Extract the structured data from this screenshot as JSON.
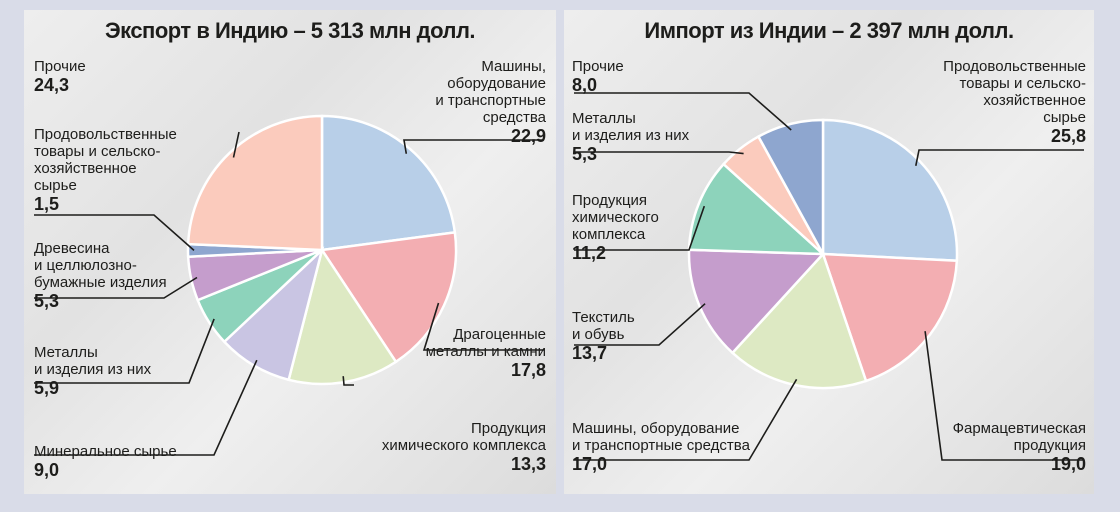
{
  "colors": {
    "background": "#d9dce8",
    "machinery": "#b8cfe8",
    "precious_metals": "#f3aeb2",
    "chemical": "#dde9c3",
    "minerals": "#c9c5e3",
    "metals": "#8dd3bb",
    "wood": "#c59dcc",
    "food": "#8ea6cf",
    "other": "#fbcbbd",
    "pharma": "#f3aeb2",
    "textile": "#c59dcc",
    "other_import": "#8ea6cf"
  },
  "chart_data": [
    {
      "type": "pie",
      "title": "Экспорт в Индию – 5 313 млн долл.",
      "slices": [
        {
          "label": "Машины,\nоборудование\nи транспортные\nсредства",
          "value": 22.9,
          "value_text": "22,9",
          "color": "#b8cfe8"
        },
        {
          "label": "Драгоценные\nметаллы и камни",
          "value": 17.8,
          "value_text": "17,8",
          "color": "#f3aeb2"
        },
        {
          "label": "Продукция\nхимического комплекса",
          "value": 13.3,
          "value_text": "13,3",
          "color": "#dde9c3"
        },
        {
          "label": "Минеральное сырье",
          "value": 9.0,
          "value_text": "9,0",
          "color": "#c9c5e3"
        },
        {
          "label": "Металлы\nи изделия из них",
          "value": 5.9,
          "value_text": "5,9",
          "color": "#8dd3bb"
        },
        {
          "label": "Древесина\nи целлюлозно-\nбумажные изделия",
          "value": 5.3,
          "value_text": "5,3",
          "color": "#c59dcc"
        },
        {
          "label": "Продовольственные\nтовары и сельско-\nхозяйственное\nсырье",
          "value": 1.5,
          "value_text": "1,5",
          "color": "#8ea6cf"
        },
        {
          "label": "Прочие",
          "value": 24.3,
          "value_text": "24,3",
          "color": "#fbcbbd"
        }
      ]
    },
    {
      "type": "pie",
      "title": "Импорт из Индии – 2 397 млн долл.",
      "slices": [
        {
          "label": "Продовольственные\nтовары и сельско-\nхозяйственное\nсырье",
          "value": 25.8,
          "value_text": "25,8",
          "color": "#b8cfe8"
        },
        {
          "label": "Фармацевтическая\nпродукция",
          "value": 19.0,
          "value_text": "19,0",
          "color": "#f3aeb2"
        },
        {
          "label": "Машины, оборудование\nи транспортные средства",
          "value": 17.0,
          "value_text": "17,0",
          "color": "#dde9c3"
        },
        {
          "label": "Текстиль\nи обувь",
          "value": 13.7,
          "value_text": "13,7",
          "color": "#c59dcc"
        },
        {
          "label": "Продукция\nхимического\nкомплекса",
          "value": 11.2,
          "value_text": "11,2",
          "color": "#8dd3bb"
        },
        {
          "label": "Металлы\nи изделия из них",
          "value": 5.3,
          "value_text": "5,3",
          "color": "#fbcbbd"
        },
        {
          "label": "Прочие",
          "value": 8.0,
          "value_text": "8,0",
          "color": "#8ea6cf"
        }
      ]
    }
  ]
}
